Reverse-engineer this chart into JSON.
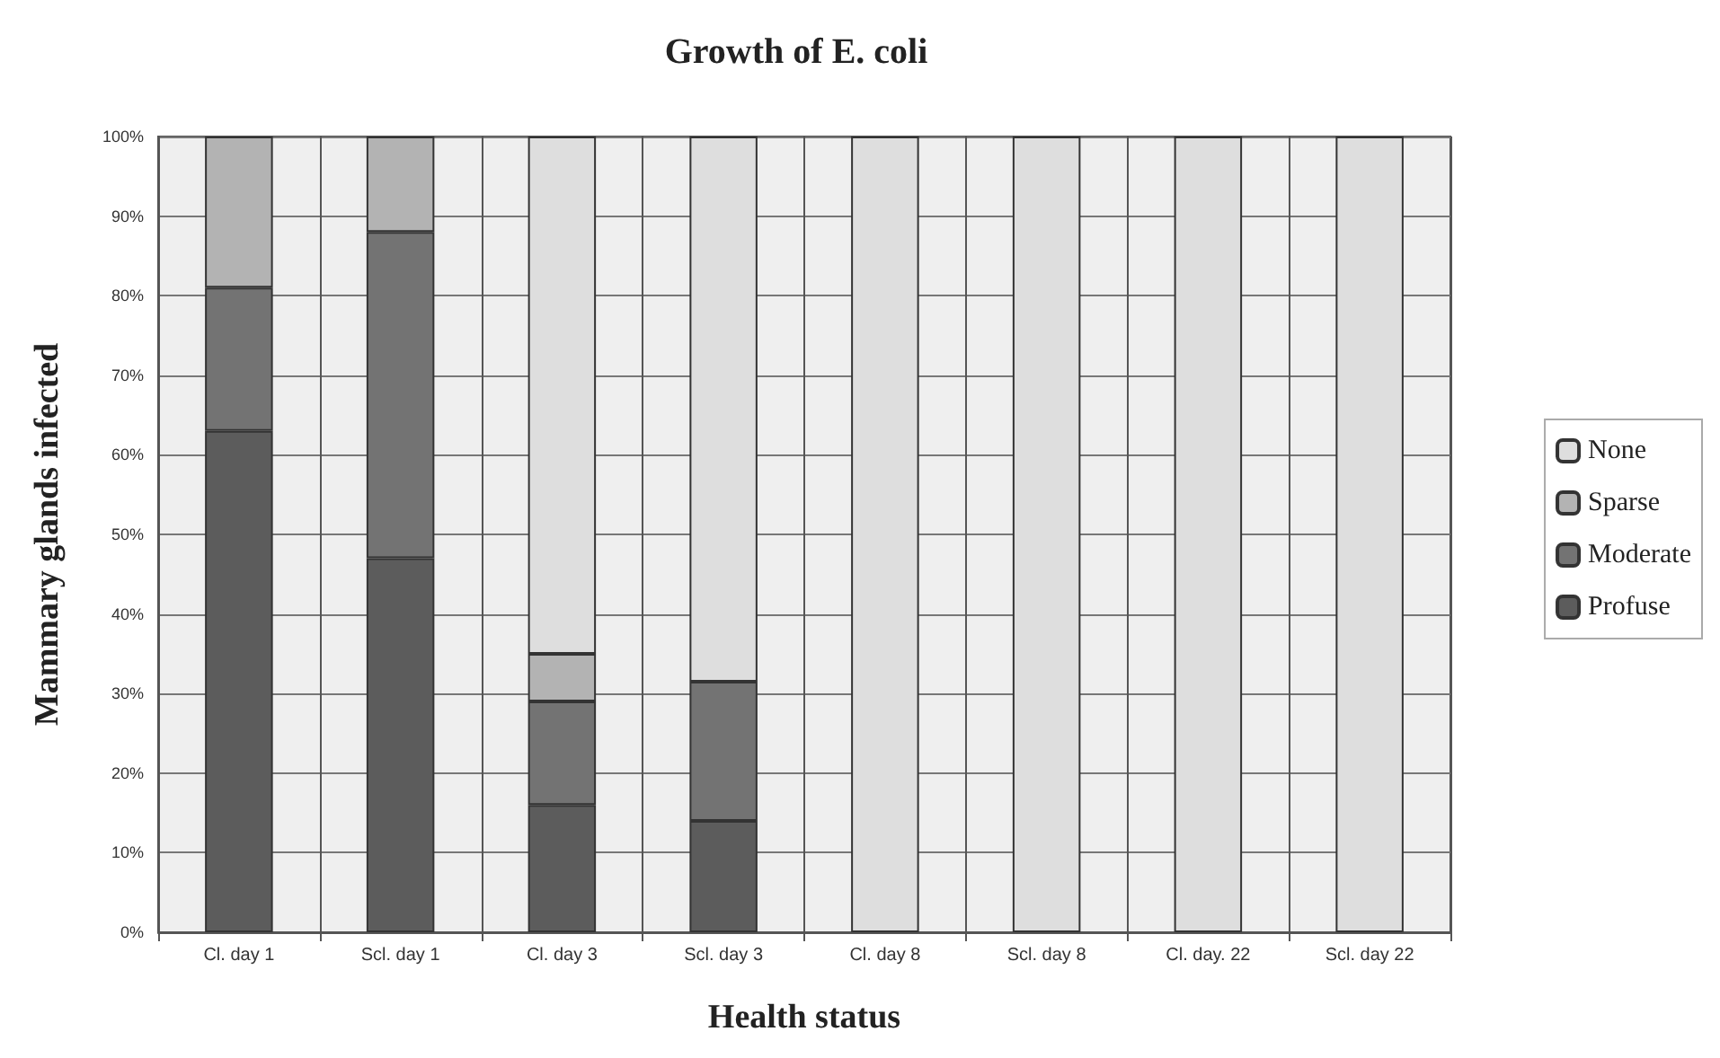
{
  "chart_data": {
    "type": "bar",
    "title": "Growth of E. coli",
    "xlabel": "Health status",
    "ylabel": "Mammary glands infected",
    "categories": [
      "Cl. day 1",
      "Scl. day 1",
      "Cl. day 3",
      "Scl. day 3",
      "Cl. day 8",
      "Scl. day 8",
      "Cl. day. 22",
      "Scl. day 22"
    ],
    "series": [
      {
        "name": "Profuse",
        "color": "#5c5c5c",
        "values": [
          63,
          47,
          16,
          14,
          0,
          0,
          0,
          0
        ]
      },
      {
        "name": "Moderate",
        "color": "#737373",
        "values": [
          18,
          41,
          13,
          17.5,
          0,
          0,
          0,
          0
        ]
      },
      {
        "name": "Sparse",
        "color": "#b3b3b3",
        "values": [
          19,
          12,
          6,
          0,
          0,
          0,
          0,
          0
        ]
      },
      {
        "name": "None",
        "color": "#dedede",
        "values": [
          0,
          0,
          65,
          68.5,
          100,
          100,
          100,
          100
        ]
      }
    ],
    "stacked": true,
    "ylim": [
      0,
      100
    ],
    "yticks": [
      {
        "value": 0,
        "label": "0%"
      },
      {
        "value": 10,
        "label": "10%"
      },
      {
        "value": 20,
        "label": "20%"
      },
      {
        "value": 30,
        "label": "30%"
      },
      {
        "value": 40,
        "label": "40%"
      },
      {
        "value": 50,
        "label": "50%"
      },
      {
        "value": 60,
        "label": "60%"
      },
      {
        "value": 70,
        "label": "70%"
      },
      {
        "value": 80,
        "label": "80%"
      },
      {
        "value": 90,
        "label": "90%"
      },
      {
        "value": 100,
        "label": "100%"
      }
    ],
    "grid": true,
    "legend": "right"
  }
}
